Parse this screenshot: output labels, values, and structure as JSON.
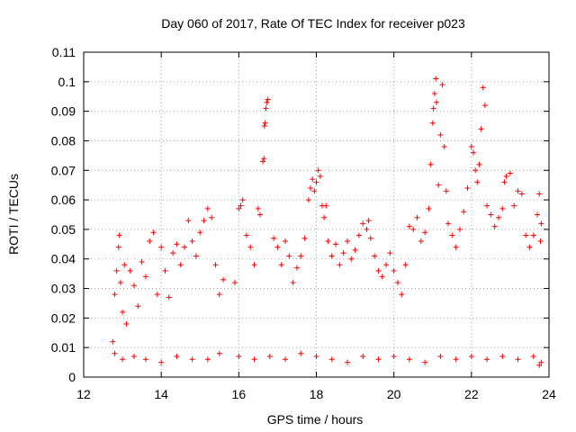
{
  "chart_data": {
    "type": "scatter",
    "title": "Day 060 of 2017, Rate Of TEC Index for receiver p023",
    "xlabel": "GPS time / hours",
    "ylabel": "ROTI / TECUs",
    "xlim": [
      12,
      24
    ],
    "ylim": [
      0,
      0.11
    ],
    "x_ticks": [
      "12",
      "14",
      "16",
      "18",
      "20",
      "22",
      "24"
    ],
    "y_ticks": [
      "0",
      "0.01",
      "0.02",
      "0.03",
      "0.04",
      "0.05",
      "0.06",
      "0.07",
      "0.08",
      "0.09",
      "0.1",
      "0.11"
    ],
    "grid": true,
    "marker": "plus",
    "color": "#ff0000",
    "series": [
      {
        "points": [
          [
            12.75,
            0.012
          ],
          [
            12.8,
            0.028
          ],
          [
            12.85,
            0.036
          ],
          [
            12.9,
            0.044
          ],
          [
            12.92,
            0.048
          ],
          [
            12.95,
            0.032
          ],
          [
            13.0,
            0.022
          ],
          [
            13.05,
            0.038
          ],
          [
            13.1,
            0.018
          ],
          [
            13.2,
            0.036
          ],
          [
            13.3,
            0.031
          ],
          [
            13.4,
            0.024
          ],
          [
            13.5,
            0.039
          ],
          [
            13.6,
            0.034
          ],
          [
            13.7,
            0.046
          ],
          [
            13.8,
            0.049
          ],
          [
            13.9,
            0.028
          ],
          [
            14.0,
            0.044
          ],
          [
            14.1,
            0.036
          ],
          [
            14.2,
            0.027
          ],
          [
            14.3,
            0.042
          ],
          [
            14.4,
            0.045
          ],
          [
            14.5,
            0.038
          ],
          [
            14.6,
            0.044
          ],
          [
            14.7,
            0.053
          ],
          [
            14.8,
            0.046
          ],
          [
            14.9,
            0.041
          ],
          [
            15.0,
            0.049
          ],
          [
            15.1,
            0.053
          ],
          [
            15.2,
            0.057
          ],
          [
            15.3,
            0.054
          ],
          [
            15.4,
            0.038
          ],
          [
            15.5,
            0.028
          ],
          [
            15.6,
            0.033
          ],
          [
            15.9,
            0.032
          ],
          [
            16.0,
            0.057
          ],
          [
            16.05,
            0.058
          ],
          [
            16.1,
            0.06
          ],
          [
            16.2,
            0.048
          ],
          [
            16.3,
            0.044
          ],
          [
            16.4,
            0.038
          ],
          [
            16.5,
            0.057
          ],
          [
            16.55,
            0.055
          ],
          [
            16.62,
            0.073
          ],
          [
            16.65,
            0.074
          ],
          [
            16.66,
            0.085
          ],
          [
            16.68,
            0.086
          ],
          [
            16.7,
            0.091
          ],
          [
            16.72,
            0.093
          ],
          [
            16.75,
            0.094
          ],
          [
            16.9,
            0.047
          ],
          [
            17.0,
            0.044
          ],
          [
            17.1,
            0.038
          ],
          [
            17.2,
            0.046
          ],
          [
            17.3,
            0.041
          ],
          [
            17.4,
            0.032
          ],
          [
            17.5,
            0.037
          ],
          [
            17.6,
            0.041
          ],
          [
            17.7,
            0.047
          ],
          [
            17.8,
            0.06
          ],
          [
            17.85,
            0.064
          ],
          [
            17.9,
            0.067
          ],
          [
            17.95,
            0.063
          ],
          [
            18.0,
            0.066
          ],
          [
            18.05,
            0.07
          ],
          [
            18.1,
            0.068
          ],
          [
            18.15,
            0.058
          ],
          [
            18.2,
            0.054
          ],
          [
            18.25,
            0.058
          ],
          [
            18.3,
            0.046
          ],
          [
            18.4,
            0.041
          ],
          [
            18.5,
            0.045
          ],
          [
            18.6,
            0.038
          ],
          [
            18.7,
            0.042
          ],
          [
            18.8,
            0.046
          ],
          [
            18.9,
            0.04
          ],
          [
            19.0,
            0.043
          ],
          [
            19.1,
            0.048
          ],
          [
            19.2,
            0.052
          ],
          [
            19.3,
            0.05
          ],
          [
            19.35,
            0.053
          ],
          [
            19.4,
            0.047
          ],
          [
            19.5,
            0.041
          ],
          [
            19.6,
            0.036
          ],
          [
            19.7,
            0.034
          ],
          [
            19.8,
            0.038
          ],
          [
            19.9,
            0.042
          ],
          [
            20.0,
            0.036
          ],
          [
            20.1,
            0.032
          ],
          [
            20.2,
            0.028
          ],
          [
            20.3,
            0.038
          ],
          [
            20.4,
            0.051
          ],
          [
            20.5,
            0.05
          ],
          [
            20.6,
            0.054
          ],
          [
            20.7,
            0.046
          ],
          [
            20.8,
            0.049
          ],
          [
            20.9,
            0.057
          ],
          [
            20.95,
            0.072
          ],
          [
            21.0,
            0.086
          ],
          [
            21.02,
            0.091
          ],
          [
            21.05,
            0.096
          ],
          [
            21.08,
            0.101
          ],
          [
            21.1,
            0.093
          ],
          [
            21.15,
            0.065
          ],
          [
            21.2,
            0.082
          ],
          [
            21.25,
            0.099
          ],
          [
            21.3,
            0.078
          ],
          [
            21.35,
            0.063
          ],
          [
            21.4,
            0.052
          ],
          [
            21.5,
            0.048
          ],
          [
            21.6,
            0.044
          ],
          [
            21.7,
            0.05
          ],
          [
            21.8,
            0.056
          ],
          [
            21.9,
            0.064
          ],
          [
            22.0,
            0.078
          ],
          [
            22.05,
            0.076
          ],
          [
            22.1,
            0.07
          ],
          [
            22.15,
            0.066
          ],
          [
            22.2,
            0.072
          ],
          [
            22.25,
            0.084
          ],
          [
            22.3,
            0.098
          ],
          [
            22.35,
            0.092
          ],
          [
            22.4,
            0.058
          ],
          [
            22.5,
            0.055
          ],
          [
            22.6,
            0.051
          ],
          [
            22.7,
            0.054
          ],
          [
            22.8,
            0.057
          ],
          [
            22.85,
            0.066
          ],
          [
            22.9,
            0.068
          ],
          [
            23.0,
            0.069
          ],
          [
            23.1,
            0.058
          ],
          [
            23.2,
            0.063
          ],
          [
            23.3,
            0.062
          ],
          [
            23.4,
            0.048
          ],
          [
            23.5,
            0.044
          ],
          [
            23.6,
            0.048
          ],
          [
            23.7,
            0.055
          ],
          [
            23.75,
            0.062
          ],
          [
            23.78,
            0.046
          ],
          [
            23.8,
            0.052
          ],
          [
            12.8,
            0.008
          ],
          [
            13.0,
            0.006
          ],
          [
            13.3,
            0.007
          ],
          [
            13.6,
            0.006
          ],
          [
            14.0,
            0.005
          ],
          [
            14.4,
            0.007
          ],
          [
            14.8,
            0.006
          ],
          [
            15.2,
            0.006
          ],
          [
            15.5,
            0.008
          ],
          [
            16.0,
            0.007
          ],
          [
            16.4,
            0.006
          ],
          [
            16.8,
            0.007
          ],
          [
            17.2,
            0.006
          ],
          [
            17.6,
            0.008
          ],
          [
            18.0,
            0.007
          ],
          [
            18.4,
            0.006
          ],
          [
            18.8,
            0.005
          ],
          [
            19.2,
            0.007
          ],
          [
            19.6,
            0.006
          ],
          [
            20.0,
            0.007
          ],
          [
            20.4,
            0.006
          ],
          [
            20.8,
            0.005
          ],
          [
            21.2,
            0.007
          ],
          [
            21.6,
            0.006
          ],
          [
            22.0,
            0.007
          ],
          [
            22.4,
            0.006
          ],
          [
            22.8,
            0.007
          ],
          [
            23.2,
            0.006
          ],
          [
            23.6,
            0.007
          ],
          [
            23.75,
            0.004
          ],
          [
            23.8,
            0.005
          ]
        ]
      }
    ]
  }
}
